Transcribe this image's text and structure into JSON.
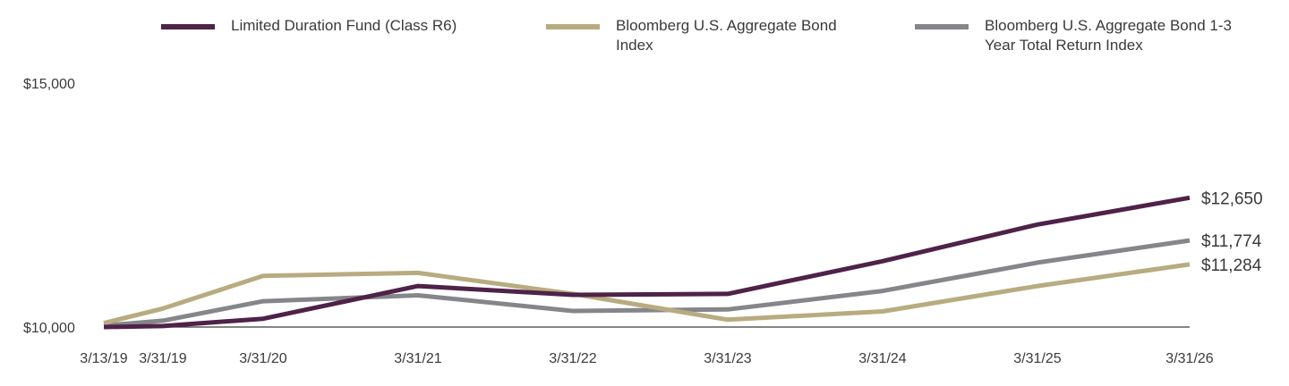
{
  "chart_data": {
    "type": "line",
    "title": "",
    "xlabel": "",
    "ylabel": "",
    "x": [
      "3/13/19",
      "3/31/19",
      "3/31/20",
      "3/31/21",
      "3/31/22",
      "3/31/23",
      "3/31/24",
      "3/31/25",
      "3/31/26"
    ],
    "ylim": [
      10000,
      15000
    ],
    "y_ticks": [
      "$15,000",
      "$10,000"
    ],
    "grid": false,
    "legend_position": "top",
    "series": [
      {
        "name": "Limited Duration Fund (Class R6)",
        "color": "#4f2248",
        "values": [
          10000,
          10020,
          10170,
          10840,
          10660,
          10680,
          11350,
          12100,
          12650
        ],
        "end_label": "$12,650"
      },
      {
        "name": "Bloomberg U.S. Aggregate Bond Index",
        "color": "#b8ab80",
        "values": [
          10080,
          10380,
          11050,
          11110,
          10680,
          10150,
          10320,
          10840,
          11284
        ],
        "end_label": "$11,284"
      },
      {
        "name": "Bloomberg U.S. Aggregate Bond 1-3 Year Total Return Index",
        "color": "#85868a",
        "values": [
          10030,
          10130,
          10530,
          10650,
          10330,
          10360,
          10740,
          11320,
          11774
        ],
        "end_label": "$11,774"
      }
    ]
  }
}
